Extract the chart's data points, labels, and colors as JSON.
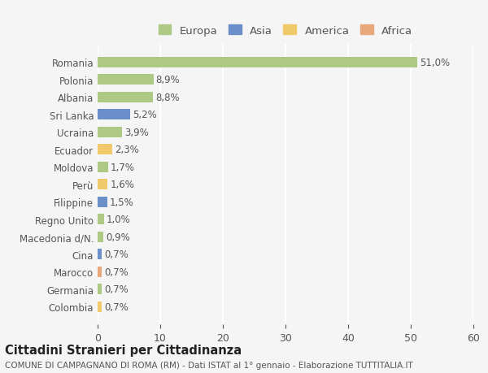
{
  "categories": [
    "Romania",
    "Polonia",
    "Albania",
    "Sri Lanka",
    "Ucraina",
    "Ecuador",
    "Moldova",
    "Perù",
    "Filippine",
    "Regno Unito",
    "Macedonia d/N.",
    "Cina",
    "Marocco",
    "Germania",
    "Colombia"
  ],
  "values": [
    51.0,
    8.9,
    8.8,
    5.2,
    3.9,
    2.3,
    1.7,
    1.6,
    1.5,
    1.0,
    0.9,
    0.7,
    0.7,
    0.7,
    0.7
  ],
  "labels": [
    "51,0%",
    "8,9%",
    "8,8%",
    "5,2%",
    "3,9%",
    "2,3%",
    "1,7%",
    "1,6%",
    "1,5%",
    "1,0%",
    "0,9%",
    "0,7%",
    "0,7%",
    "0,7%",
    "0,7%"
  ],
  "continents": [
    "Europa",
    "Europa",
    "Europa",
    "Asia",
    "Europa",
    "America",
    "Europa",
    "America",
    "Asia",
    "Europa",
    "Europa",
    "Asia",
    "Africa",
    "Europa",
    "America"
  ],
  "continent_colors": {
    "Europa": "#aec984",
    "Asia": "#6b8fc9",
    "America": "#f0c96a",
    "Africa": "#e8a87c"
  },
  "legend_order": [
    "Europa",
    "Asia",
    "America",
    "Africa"
  ],
  "xlim": [
    0,
    60
  ],
  "xticks": [
    0,
    10,
    20,
    30,
    40,
    50,
    60
  ],
  "title": "Cittadini Stranieri per Cittadinanza",
  "subtitle": "COMUNE DI CAMPAGNANO DI ROMA (RM) - Dati ISTAT al 1° gennaio - Elaborazione TUTTITALIA.IT",
  "bg_color": "#f5f5f5",
  "bar_height": 0.6,
  "grid_color": "#ffffff",
  "text_color": "#555555",
  "title_color": "#222222",
  "subtitle_color": "#555555"
}
